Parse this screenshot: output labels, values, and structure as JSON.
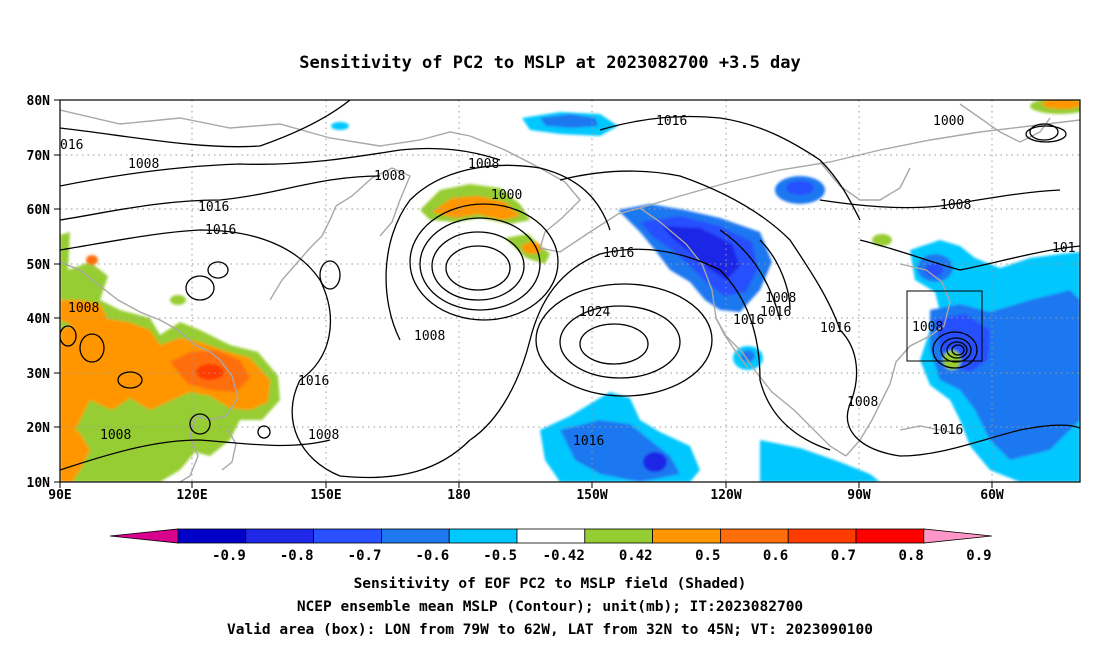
{
  "title": "Sensitivity of PC2 to MSLP at 2023082700 +3.5 day",
  "map": {
    "lon_ticks": [
      "90E",
      "120E",
      "150E",
      "180",
      "150W",
      "120W",
      "90W",
      "60W"
    ],
    "lat_ticks": [
      "80N",
      "70N",
      "60N",
      "50N",
      "40N",
      "30N",
      "20N",
      "10N"
    ],
    "valid_box": {
      "lon_from": "79W",
      "lon_to": "62W",
      "lat_from": "32N",
      "lat_to": "45N"
    },
    "contour_labels": [
      "016",
      "1008",
      "1008",
      "1016",
      "1016",
      "1008",
      "1016",
      "1000",
      "1008",
      "1016",
      "1016",
      "1024",
      "1008",
      "1016",
      "1016",
      "1008",
      "1016",
      "1016",
      "1008",
      "1016",
      "1000",
      "1008",
      "101",
      "1008",
      "1016",
      "1008",
      "1008"
    ]
  },
  "colorbar": {
    "tick_labels": [
      "-0.9",
      "-0.8",
      "-0.7",
      "-0.6",
      "-0.5",
      "-0.42",
      "0.42",
      "0.5",
      "0.6",
      "0.7",
      "0.8",
      "0.9"
    ],
    "colors": [
      "#d8008c",
      "#0000c8",
      "#1e28e6",
      "#2850ff",
      "#1e78f0",
      "#00c8ff",
      "#ffffff",
      "#96cd32",
      "#ff9600",
      "#ff6e0a",
      "#ff3c00",
      "#ff0000",
      "#ff96c8"
    ]
  },
  "captions": [
    "Sensitivity of EOF PC2 to MSLP field (Shaded)",
    "NCEP ensemble mean MSLP (Contour); unit(mb); IT:2023082700",
    "Valid area (box): LON from 79W to 62W, LAT from 32N to 45N; VT: 2023090100"
  ]
}
